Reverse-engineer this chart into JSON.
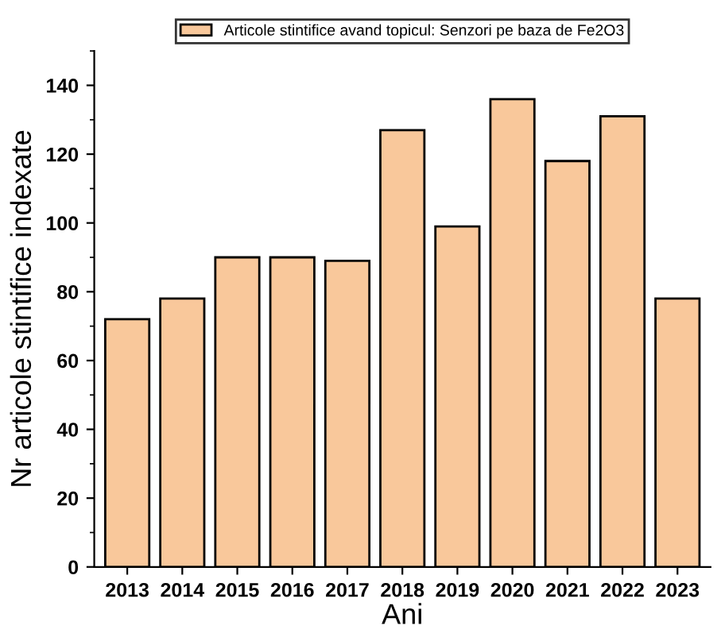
{
  "chart_data": {
    "type": "bar",
    "xlabel": "Ani",
    "ylabel": "Nr articole stintifice indexate",
    "categories": [
      "2013",
      "2014",
      "2015",
      "2016",
      "2017",
      "2018",
      "2019",
      "2020",
      "2021",
      "2022",
      "2023"
    ],
    "series": [
      {
        "name": "Articole stintifice avand topicul: Senzori pe baza de Fe2O3",
        "color": "#f9c89b",
        "values": [
          72,
          78,
          90,
          90,
          89,
          127,
          99,
          136,
          118,
          131,
          78
        ]
      }
    ],
    "ylim": [
      0,
      150
    ],
    "yticks": [
      0,
      20,
      40,
      60,
      80,
      100,
      120,
      140
    ],
    "grid": false,
    "legend": "top"
  }
}
